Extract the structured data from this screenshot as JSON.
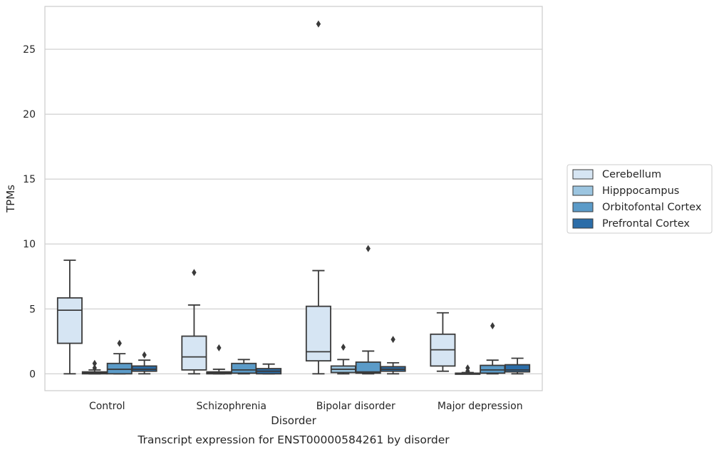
{
  "chart_data": {
    "type": "box",
    "caption": "Transcript expression for ENST00000584261 by disorder",
    "xlabel": "Disorder",
    "ylabel": "TPMs",
    "ylim": [
      -1.3,
      28.3
    ],
    "yticks": [
      0,
      5,
      10,
      15,
      20,
      25
    ],
    "categories": [
      "Control",
      "Schizophrenia",
      "Bipolar disorder",
      "Major depression"
    ],
    "grid": "horizontal",
    "legend_position": "right",
    "series": [
      {
        "name": "Cerebellum",
        "color": "#d6e5f3",
        "boxes": [
          {
            "whislo": 0.0,
            "q1": 2.35,
            "med": 4.9,
            "q3": 5.85,
            "whishi": 8.75,
            "fliers": []
          },
          {
            "whislo": 0.0,
            "q1": 0.3,
            "med": 1.3,
            "q3": 2.9,
            "whishi": 5.3,
            "fliers": [
              7.8
            ]
          },
          {
            "whislo": 0.0,
            "q1": 1.0,
            "med": 1.7,
            "q3": 5.2,
            "whishi": 7.95,
            "fliers": [
              26.95
            ]
          },
          {
            "whislo": 0.2,
            "q1": 0.6,
            "med": 1.85,
            "q3": 3.05,
            "whishi": 4.7,
            "fliers": []
          }
        ]
      },
      {
        "name": "Hipppocampus",
        "color": "#9cc5e0",
        "boxes": [
          {
            "whislo": 0.0,
            "q1": 0.0,
            "med": 0.05,
            "q3": 0.15,
            "whishi": 0.3,
            "fliers": [
              0.45,
              0.8
            ]
          },
          {
            "whislo": 0.0,
            "q1": 0.0,
            "med": 0.05,
            "q3": 0.15,
            "whishi": 0.35,
            "fliers": [
              2.0
            ]
          },
          {
            "whislo": 0.0,
            "q1": 0.1,
            "med": 0.35,
            "q3": 0.6,
            "whishi": 1.1,
            "fliers": [
              2.05
            ]
          },
          {
            "whislo": 0.0,
            "q1": 0.0,
            "med": 0.0,
            "q3": 0.05,
            "whishi": 0.1,
            "fliers": [
              0.2,
              0.45
            ]
          }
        ]
      },
      {
        "name": "Orbitofontal Cortex",
        "color": "#5b9bc8",
        "boxes": [
          {
            "whislo": 0.0,
            "q1": 0.0,
            "med": 0.35,
            "q3": 0.8,
            "whishi": 1.55,
            "fliers": [
              2.35
            ]
          },
          {
            "whislo": 0.0,
            "q1": 0.05,
            "med": 0.3,
            "q3": 0.8,
            "whishi": 1.1,
            "fliers": []
          },
          {
            "whislo": 0.0,
            "q1": 0.05,
            "med": 0.15,
            "q3": 0.9,
            "whishi": 1.75,
            "fliers": [
              9.65
            ]
          },
          {
            "whislo": 0.0,
            "q1": 0.05,
            "med": 0.3,
            "q3": 0.65,
            "whishi": 1.05,
            "fliers": [
              3.7
            ]
          }
        ]
      },
      {
        "name": "Prefrontal Cortex",
        "color": "#2b6da8",
        "boxes": [
          {
            "whislo": 0.0,
            "q1": 0.2,
            "med": 0.35,
            "q3": 0.6,
            "whishi": 1.05,
            "fliers": [
              1.45
            ]
          },
          {
            "whislo": 0.0,
            "q1": 0.0,
            "med": 0.2,
            "q3": 0.4,
            "whishi": 0.75,
            "fliers": []
          },
          {
            "whislo": 0.0,
            "q1": 0.2,
            "med": 0.35,
            "q3": 0.55,
            "whishi": 0.85,
            "fliers": [
              2.65
            ]
          },
          {
            "whislo": 0.0,
            "q1": 0.15,
            "med": 0.3,
            "q3": 0.7,
            "whishi": 1.2,
            "fliers": []
          }
        ]
      }
    ]
  }
}
